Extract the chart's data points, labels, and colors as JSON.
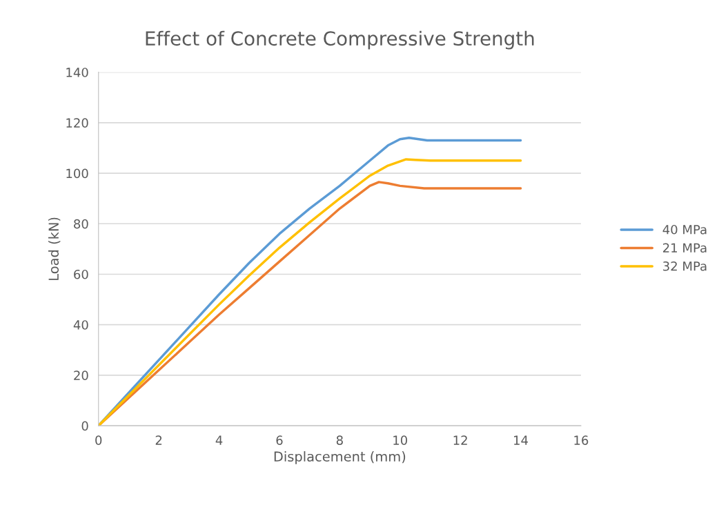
{
  "chart_data": {
    "type": "line",
    "title": "Effect of Concrete Compressive Strength",
    "xlabel": "Displacement (mm)",
    "ylabel": "Load (kN)",
    "xlim": [
      0,
      16
    ],
    "xticks": [
      0,
      2,
      4,
      6,
      8,
      10,
      12,
      14,
      16
    ],
    "ylim": [
      0,
      140
    ],
    "yticks": [
      0,
      20,
      40,
      60,
      80,
      100,
      120,
      140
    ],
    "grid": "y",
    "legend": "right",
    "marker": "none",
    "series": [
      {
        "name": "40 MPa",
        "color": "#5b9bd5",
        "x": [
          0,
          1,
          2,
          3,
          4,
          5,
          6,
          7,
          8,
          9,
          9.6,
          10,
          10.3,
          10.9,
          12,
          14
        ],
        "values": [
          0,
          13,
          26,
          39,
          52,
          64.5,
          76,
          86,
          95,
          105,
          111,
          113.5,
          114,
          113,
          113,
          113
        ]
      },
      {
        "name": "21 MPa",
        "color": "#ed7d31",
        "x": [
          0,
          1,
          2,
          3,
          4,
          5,
          6,
          7,
          8,
          9,
          9.3,
          9.6,
          10,
          10.8,
          12,
          14
        ],
        "values": [
          0,
          11,
          22,
          33,
          44,
          54.5,
          65,
          75.5,
          86,
          95,
          96.5,
          96,
          95,
          94,
          94,
          94
        ]
      },
      {
        "name": "32 MPa",
        "color": "#ffc000",
        "x": [
          0,
          1,
          2,
          3,
          4,
          5,
          6,
          7,
          8,
          9,
          9.6,
          10.2,
          10.5,
          11,
          14
        ],
        "values": [
          0,
          12,
          24,
          36,
          48,
          59.5,
          70.5,
          80.5,
          90,
          99,
          103,
          105.5,
          105.3,
          105,
          105
        ]
      }
    ]
  }
}
